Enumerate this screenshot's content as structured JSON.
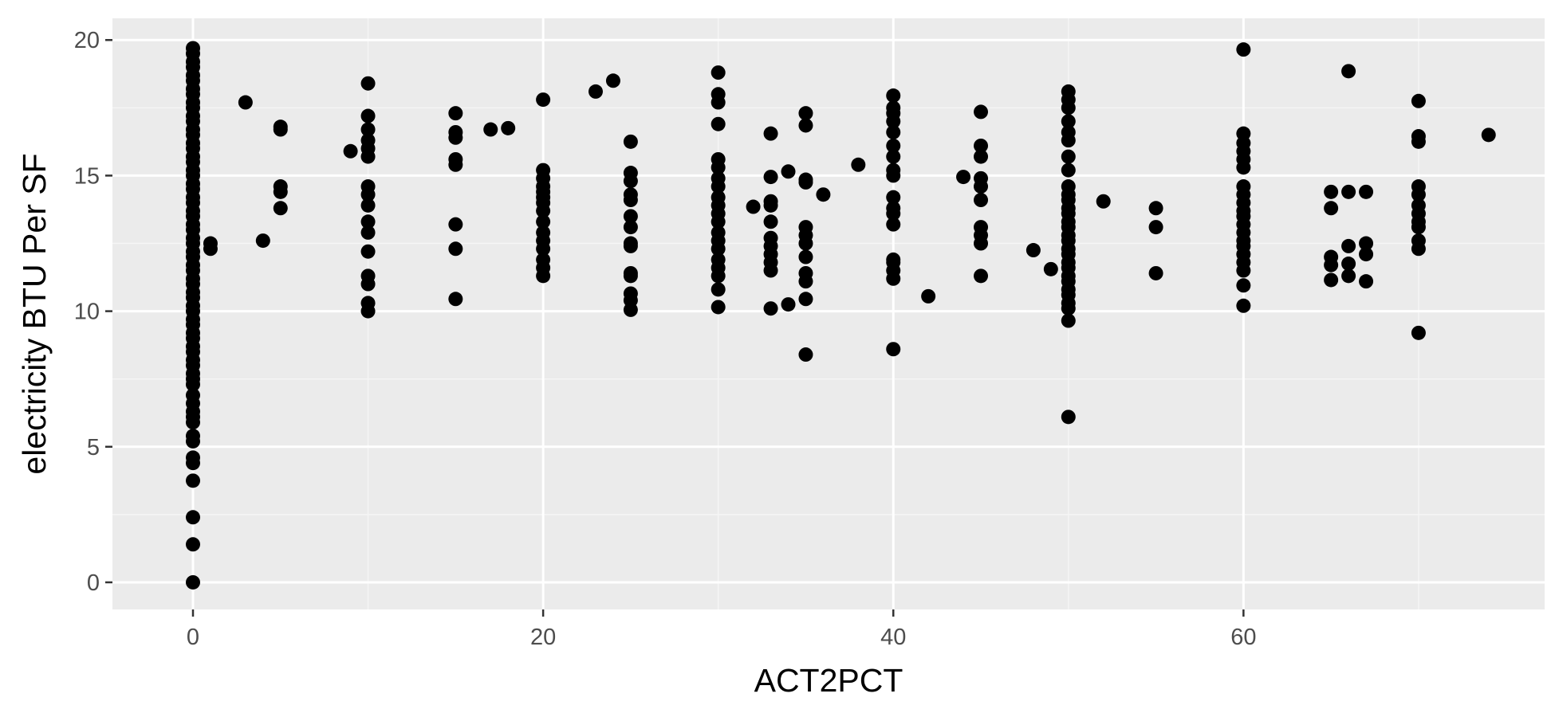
{
  "chart_data": {
    "type": "scatter",
    "title": "",
    "xlabel": "ACT2PCT",
    "ylabel": "electricity BTU Per SF",
    "xlim": [
      -4.6,
      77.2
    ],
    "ylim": [
      -1,
      20.8
    ],
    "x_ticks": [
      0,
      20,
      40,
      60
    ],
    "y_ticks": [
      0,
      5,
      10,
      15,
      20
    ],
    "x_tick_labels": [
      "0",
      "20",
      "40",
      "60"
    ],
    "y_tick_labels": [
      "0",
      "5",
      "10",
      "15",
      "20"
    ],
    "grid": true,
    "legend": "none",
    "colors": {
      "panel_background": "#ebebeb",
      "grid_major": "#ffffff",
      "grid_minor": "#f5f5f5",
      "point": "#000000",
      "tick_label": "#4d4d4d",
      "axis_title": "#000000"
    },
    "series": [
      {
        "points": [
          [
            0,
            0.0
          ],
          [
            0,
            1.4
          ],
          [
            0,
            2.4
          ],
          [
            0,
            3.75
          ],
          [
            0,
            4.4
          ],
          [
            0,
            4.6
          ],
          [
            0,
            5.2
          ],
          [
            0,
            5.4
          ],
          [
            0,
            5.9
          ],
          [
            0,
            6.1
          ],
          [
            0,
            6.3
          ],
          [
            0,
            6.6
          ],
          [
            0,
            6.9
          ],
          [
            0,
            7.3
          ],
          [
            0,
            7.5
          ],
          [
            0,
            7.7
          ],
          [
            0,
            8.0
          ],
          [
            0,
            8.2
          ],
          [
            0,
            8.5
          ],
          [
            0,
            8.7
          ],
          [
            0,
            9.0
          ],
          [
            0,
            9.2
          ],
          [
            0,
            9.5
          ],
          [
            0,
            9.7
          ],
          [
            0,
            10.0
          ],
          [
            0,
            10.2
          ],
          [
            0,
            10.5
          ],
          [
            0,
            10.7
          ],
          [
            0,
            11.0
          ],
          [
            0,
            11.2
          ],
          [
            0,
            11.5
          ],
          [
            0,
            11.7
          ],
          [
            0,
            12.0
          ],
          [
            0,
            12.2
          ],
          [
            0,
            12.5
          ],
          [
            0,
            12.7
          ],
          [
            0,
            13.0
          ],
          [
            0,
            13.2
          ],
          [
            0,
            13.5
          ],
          [
            0,
            13.7
          ],
          [
            0,
            14.0
          ],
          [
            0,
            14.2
          ],
          [
            0,
            14.5
          ],
          [
            0,
            14.7
          ],
          [
            0,
            15.0
          ],
          [
            0,
            15.2
          ],
          [
            0,
            15.5
          ],
          [
            0,
            15.7
          ],
          [
            0,
            16.0
          ],
          [
            0,
            16.2
          ],
          [
            0,
            16.5
          ],
          [
            0,
            16.7
          ],
          [
            0,
            17.0
          ],
          [
            0,
            17.2
          ],
          [
            0,
            17.5
          ],
          [
            0,
            17.7
          ],
          [
            0,
            18.0
          ],
          [
            0,
            18.2
          ],
          [
            0,
            18.5
          ],
          [
            0,
            18.7
          ],
          [
            0,
            19.0
          ],
          [
            0,
            19.2
          ],
          [
            0,
            19.5
          ],
          [
            0,
            19.7
          ],
          [
            1,
            12.3
          ],
          [
            1,
            12.5
          ],
          [
            3,
            17.7
          ],
          [
            4,
            12.6
          ],
          [
            5,
            13.8
          ],
          [
            5,
            14.4
          ],
          [
            5,
            14.6
          ],
          [
            5,
            16.7
          ],
          [
            5,
            16.8
          ],
          [
            9,
            15.9
          ],
          [
            10,
            10.0
          ],
          [
            10,
            10.3
          ],
          [
            10,
            11.0
          ],
          [
            10,
            11.3
          ],
          [
            10,
            12.2
          ],
          [
            10,
            12.9
          ],
          [
            10,
            13.3
          ],
          [
            10,
            13.9
          ],
          [
            10,
            14.3
          ],
          [
            10,
            14.6
          ],
          [
            10,
            15.7
          ],
          [
            10,
            16.0
          ],
          [
            10,
            16.3
          ],
          [
            10,
            16.7
          ],
          [
            10,
            17.2
          ],
          [
            10,
            18.4
          ],
          [
            15,
            10.45
          ],
          [
            15,
            12.3
          ],
          [
            15,
            13.2
          ],
          [
            15,
            15.4
          ],
          [
            15,
            15.6
          ],
          [
            15,
            16.4
          ],
          [
            15,
            16.6
          ],
          [
            15,
            17.3
          ],
          [
            17,
            16.7
          ],
          [
            18,
            16.75
          ],
          [
            20,
            11.3
          ],
          [
            20,
            11.6
          ],
          [
            20,
            11.9
          ],
          [
            20,
            12.3
          ],
          [
            20,
            12.6
          ],
          [
            20,
            12.9
          ],
          [
            20,
            13.3
          ],
          [
            20,
            13.7
          ],
          [
            20,
            14.0
          ],
          [
            20,
            14.2
          ],
          [
            20,
            14.4
          ],
          [
            20,
            14.6
          ],
          [
            20,
            14.9
          ],
          [
            20,
            15.2
          ],
          [
            20,
            17.8
          ],
          [
            23,
            18.1
          ],
          [
            24,
            18.5
          ],
          [
            25,
            10.05
          ],
          [
            25,
            10.4
          ],
          [
            25,
            10.65
          ],
          [
            25,
            11.3
          ],
          [
            25,
            11.4
          ],
          [
            25,
            12.4
          ],
          [
            25,
            12.5
          ],
          [
            25,
            13.1
          ],
          [
            25,
            13.5
          ],
          [
            25,
            14.1
          ],
          [
            25,
            14.3
          ],
          [
            25,
            14.8
          ],
          [
            25,
            15.1
          ],
          [
            25,
            16.25
          ],
          [
            30,
            10.15
          ],
          [
            30,
            10.8
          ],
          [
            30,
            11.3
          ],
          [
            30,
            11.6
          ],
          [
            30,
            11.9
          ],
          [
            30,
            12.3
          ],
          [
            30,
            12.6
          ],
          [
            30,
            12.9
          ],
          [
            30,
            13.3
          ],
          [
            30,
            13.6
          ],
          [
            30,
            13.9
          ],
          [
            30,
            14.2
          ],
          [
            30,
            14.6
          ],
          [
            30,
            14.9
          ],
          [
            30,
            15.3
          ],
          [
            30,
            15.6
          ],
          [
            30,
            16.9
          ],
          [
            30,
            17.7
          ],
          [
            30,
            18.0
          ],
          [
            30,
            18.8
          ],
          [
            32,
            13.85
          ],
          [
            33,
            10.1
          ],
          [
            33,
            11.5
          ],
          [
            33,
            11.8
          ],
          [
            33,
            12.1
          ],
          [
            33,
            12.4
          ],
          [
            33,
            12.7
          ],
          [
            33,
            13.3
          ],
          [
            33,
            13.9
          ],
          [
            33,
            14.05
          ],
          [
            33,
            14.95
          ],
          [
            33,
            16.55
          ],
          [
            34,
            10.25
          ],
          [
            34,
            15.15
          ],
          [
            35,
            8.4
          ],
          [
            35,
            10.45
          ],
          [
            35,
            11.1
          ],
          [
            35,
            11.4
          ],
          [
            35,
            12.0
          ],
          [
            35,
            12.5
          ],
          [
            35,
            12.8
          ],
          [
            35,
            13.1
          ],
          [
            35,
            14.75
          ],
          [
            35,
            14.85
          ],
          [
            35,
            16.85
          ],
          [
            35,
            17.3
          ],
          [
            36,
            14.3
          ],
          [
            38,
            15.4
          ],
          [
            40,
            8.6
          ],
          [
            40,
            11.2
          ],
          [
            40,
            11.5
          ],
          [
            40,
            11.8
          ],
          [
            40,
            11.9
          ],
          [
            40,
            13.2
          ],
          [
            40,
            13.6
          ],
          [
            40,
            13.8
          ],
          [
            40,
            14.2
          ],
          [
            40,
            15.0
          ],
          [
            40,
            15.2
          ],
          [
            40,
            15.7
          ],
          [
            40,
            16.1
          ],
          [
            40,
            16.6
          ],
          [
            40,
            17.0
          ],
          [
            40,
            17.3
          ],
          [
            40,
            17.5
          ],
          [
            40,
            17.95
          ],
          [
            42,
            10.55
          ],
          [
            44,
            14.95
          ],
          [
            45,
            11.3
          ],
          [
            45,
            12.5
          ],
          [
            45,
            12.8
          ],
          [
            45,
            13.1
          ],
          [
            45,
            14.1
          ],
          [
            45,
            14.6
          ],
          [
            45,
            14.9
          ],
          [
            45,
            15.7
          ],
          [
            45,
            16.1
          ],
          [
            45,
            17.35
          ],
          [
            48,
            12.25
          ],
          [
            49,
            11.55
          ],
          [
            50,
            6.1
          ],
          [
            50,
            9.65
          ],
          [
            50,
            10.1
          ],
          [
            50,
            10.3
          ],
          [
            50,
            10.6
          ],
          [
            50,
            10.8
          ],
          [
            50,
            11.1
          ],
          [
            50,
            11.3
          ],
          [
            50,
            11.6
          ],
          [
            50,
            11.8
          ],
          [
            50,
            12.1
          ],
          [
            50,
            12.3
          ],
          [
            50,
            12.6
          ],
          [
            50,
            12.8
          ],
          [
            50,
            13.1
          ],
          [
            50,
            13.3
          ],
          [
            50,
            13.6
          ],
          [
            50,
            13.8
          ],
          [
            50,
            14.1
          ],
          [
            50,
            14.3
          ],
          [
            50,
            14.6
          ],
          [
            50,
            15.2
          ],
          [
            50,
            15.7
          ],
          [
            50,
            16.3
          ],
          [
            50,
            16.6
          ],
          [
            50,
            17.0
          ],
          [
            50,
            17.5
          ],
          [
            50,
            17.8
          ],
          [
            50,
            18.1
          ],
          [
            52,
            14.05
          ],
          [
            55,
            11.4
          ],
          [
            55,
            13.1
          ],
          [
            55,
            13.8
          ],
          [
            60,
            10.2
          ],
          [
            60,
            10.95
          ],
          [
            60,
            11.5
          ],
          [
            60,
            11.8
          ],
          [
            60,
            12.1
          ],
          [
            60,
            12.4
          ],
          [
            60,
            12.6
          ],
          [
            60,
            12.9
          ],
          [
            60,
            13.2
          ],
          [
            60,
            13.5
          ],
          [
            60,
            13.7
          ],
          [
            60,
            14.0
          ],
          [
            60,
            14.3
          ],
          [
            60,
            14.6
          ],
          [
            60,
            15.3
          ],
          [
            60,
            15.6
          ],
          [
            60,
            15.9
          ],
          [
            60,
            16.2
          ],
          [
            60,
            16.55
          ],
          [
            60,
            19.65
          ],
          [
            65,
            11.15
          ],
          [
            65,
            11.7
          ],
          [
            65,
            12.0
          ],
          [
            65,
            13.8
          ],
          [
            65,
            14.4
          ],
          [
            66,
            11.3
          ],
          [
            66,
            11.75
          ],
          [
            66,
            12.4
          ],
          [
            66,
            14.4
          ],
          [
            66,
            18.85
          ],
          [
            67,
            11.1
          ],
          [
            67,
            12.1
          ],
          [
            67,
            12.5
          ],
          [
            67,
            14.4
          ],
          [
            70,
            9.2
          ],
          [
            70,
            12.3
          ],
          [
            70,
            12.6
          ],
          [
            70,
            13.1
          ],
          [
            70,
            13.3
          ],
          [
            70,
            13.6
          ],
          [
            70,
            13.9
          ],
          [
            70,
            14.3
          ],
          [
            70,
            14.6
          ],
          [
            70,
            16.25
          ],
          [
            70,
            16.45
          ],
          [
            70,
            17.75
          ],
          [
            74,
            16.5
          ]
        ]
      }
    ]
  }
}
